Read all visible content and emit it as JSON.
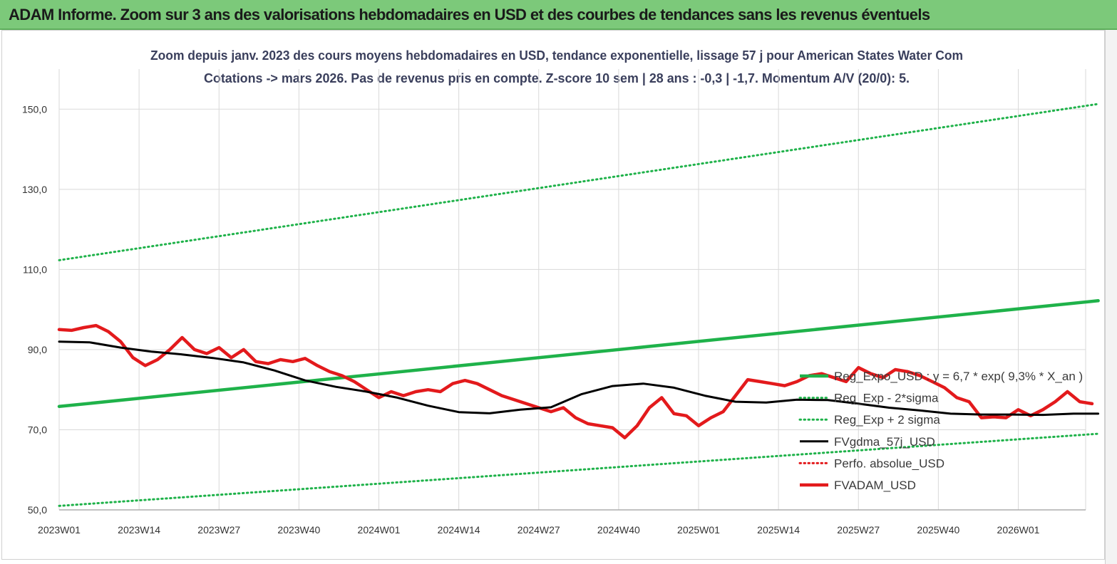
{
  "banner": {
    "title": "ADAM Informe. Zoom sur 3 ans des valorisations hebdomadaires en USD et des courbes de tendances sans les revenus éventuels"
  },
  "colors": {
    "banner_bg": "#7cc97a",
    "trend_green": "#1fb24a",
    "smooth_black": "#000000",
    "price_red": "#e31a1c",
    "perfo_red": "#e31a1c"
  },
  "chart_data": {
    "type": "line",
    "title": "Zoom depuis janv. 2023 des cours moyens hebdomadaires en USD, tendance exponentielle, lissage 57 j pour American States Water Com",
    "subtitle": "Cotations -> mars 2026. Pas de revenus pris en compte. Z-score 10 sem  | 28 ans : -0,3 | -1,7. Momentum A/V (20/0): 5.",
    "xlabel": "",
    "ylabel": "",
    "ylim": [
      50,
      160
    ],
    "yticks": [
      50,
      70,
      90,
      110,
      130,
      150
    ],
    "ytick_labels": [
      "50,0",
      "70,0",
      "90,0",
      "110,0",
      "130,0",
      "150,0"
    ],
    "grid": true,
    "legend_position": "right",
    "x_tick_labels": [
      "2023W01",
      "2023W14",
      "2023W27",
      "2023W40",
      "2024W01",
      "2024W14",
      "2024W27",
      "2024W40",
      "2025W01",
      "2025W14",
      "2025W27",
      "2025W40",
      "2026W01"
    ],
    "x_tick_index": [
      0,
      13,
      26,
      39,
      52,
      65,
      78,
      91,
      104,
      117,
      130,
      143,
      156
    ],
    "n_weeks": 170,
    "series": [
      {
        "name": "Reg_Expo_USD : y = 6,7 * exp( 9,3% *  X_an )",
        "style": "solid-thick",
        "color": "#1fb24a",
        "points": [
          [
            0,
            75.8
          ],
          [
            169,
            102.2
          ]
        ]
      },
      {
        "name": "Reg_Exp - 2*sigma",
        "style": "dotted",
        "color": "#1fb24a",
        "points": [
          [
            0,
            51.0
          ],
          [
            169,
            69.0
          ]
        ]
      },
      {
        "name": "Reg_Exp + 2 sigma",
        "style": "dotted",
        "color": "#1fb24a",
        "points": [
          [
            0,
            112.3
          ],
          [
            169,
            151.3
          ]
        ]
      },
      {
        "name": "FVgdma_57j_USD",
        "style": "solid",
        "color": "#000000",
        "points": [
          [
            0,
            92.0
          ],
          [
            5,
            91.8
          ],
          [
            10,
            90.5
          ],
          [
            15,
            89.5
          ],
          [
            20,
            88.8
          ],
          [
            25,
            87.9
          ],
          [
            30,
            86.8
          ],
          [
            35,
            84.8
          ],
          [
            40,
            82.3
          ],
          [
            45,
            80.7
          ],
          [
            50,
            79.5
          ],
          [
            55,
            78.0
          ],
          [
            60,
            76.0
          ],
          [
            65,
            74.4
          ],
          [
            70,
            74.1
          ],
          [
            75,
            75.0
          ],
          [
            80,
            75.6
          ],
          [
            85,
            78.9
          ],
          [
            90,
            80.9
          ],
          [
            95,
            81.5
          ],
          [
            100,
            80.5
          ],
          [
            105,
            78.5
          ],
          [
            110,
            77.0
          ],
          [
            115,
            76.8
          ],
          [
            120,
            77.5
          ],
          [
            125,
            77.4
          ],
          [
            130,
            76.5
          ],
          [
            135,
            75.5
          ],
          [
            140,
            74.8
          ],
          [
            145,
            74.0
          ],
          [
            150,
            73.8
          ],
          [
            155,
            73.8
          ],
          [
            160,
            73.7
          ],
          [
            165,
            74.0
          ],
          [
            169,
            74.0
          ]
        ]
      },
      {
        "name": "Perfo. absolue_USD",
        "style": "dotted",
        "color": "#e31a1c",
        "points": []
      },
      {
        "name": "FVADAM_USD",
        "style": "solid-thick",
        "color": "#e31a1c",
        "points": [
          [
            0,
            95.0
          ],
          [
            2,
            94.8
          ],
          [
            4,
            95.5
          ],
          [
            6,
            96.0
          ],
          [
            8,
            94.5
          ],
          [
            10,
            92.0
          ],
          [
            12,
            88.0
          ],
          [
            14,
            86.0
          ],
          [
            16,
            87.5
          ],
          [
            18,
            90.0
          ],
          [
            20,
            93.0
          ],
          [
            22,
            90.0
          ],
          [
            24,
            89.0
          ],
          [
            26,
            90.5
          ],
          [
            28,
            88.0
          ],
          [
            30,
            90.0
          ],
          [
            32,
            87.0
          ],
          [
            34,
            86.5
          ],
          [
            36,
            87.5
          ],
          [
            38,
            87.0
          ],
          [
            40,
            87.8
          ],
          [
            42,
            86.0
          ],
          [
            44,
            84.5
          ],
          [
            46,
            83.5
          ],
          [
            48,
            82.0
          ],
          [
            50,
            80.0
          ],
          [
            52,
            78.0
          ],
          [
            54,
            79.5
          ],
          [
            56,
            78.5
          ],
          [
            58,
            79.5
          ],
          [
            60,
            80.0
          ],
          [
            62,
            79.5
          ],
          [
            64,
            81.5
          ],
          [
            66,
            82.3
          ],
          [
            68,
            81.5
          ],
          [
            70,
            80.0
          ],
          [
            72,
            78.5
          ],
          [
            74,
            77.5
          ],
          [
            76,
            76.5
          ],
          [
            78,
            75.5
          ],
          [
            80,
            74.5
          ],
          [
            82,
            75.5
          ],
          [
            84,
            73.0
          ],
          [
            86,
            71.5
          ],
          [
            88,
            71.0
          ],
          [
            90,
            70.5
          ],
          [
            92,
            68.0
          ],
          [
            94,
            71.0
          ],
          [
            96,
            75.5
          ],
          [
            98,
            78.0
          ],
          [
            100,
            74.0
          ],
          [
            102,
            73.5
          ],
          [
            104,
            71.0
          ],
          [
            106,
            73.0
          ],
          [
            108,
            74.5
          ],
          [
            110,
            78.5
          ],
          [
            112,
            82.5
          ],
          [
            114,
            82.0
          ],
          [
            116,
            81.5
          ],
          [
            118,
            81.0
          ],
          [
            120,
            82.0
          ],
          [
            122,
            83.5
          ],
          [
            124,
            84.0
          ],
          [
            126,
            83.0
          ],
          [
            128,
            82.0
          ],
          [
            130,
            85.5
          ],
          [
            132,
            84.0
          ],
          [
            134,
            83.0
          ],
          [
            136,
            85.0
          ],
          [
            138,
            84.5
          ],
          [
            140,
            83.5
          ],
          [
            142,
            82.0
          ],
          [
            144,
            80.5
          ],
          [
            146,
            78.0
          ],
          [
            148,
            77.0
          ],
          [
            150,
            73.0
          ],
          [
            152,
            73.2
          ],
          [
            154,
            73.0
          ],
          [
            156,
            75.0
          ],
          [
            158,
            73.5
          ],
          [
            160,
            75.0
          ],
          [
            162,
            77.0
          ],
          [
            164,
            79.5
          ],
          [
            166,
            77.0
          ],
          [
            168,
            76.5
          ]
        ]
      }
    ]
  }
}
